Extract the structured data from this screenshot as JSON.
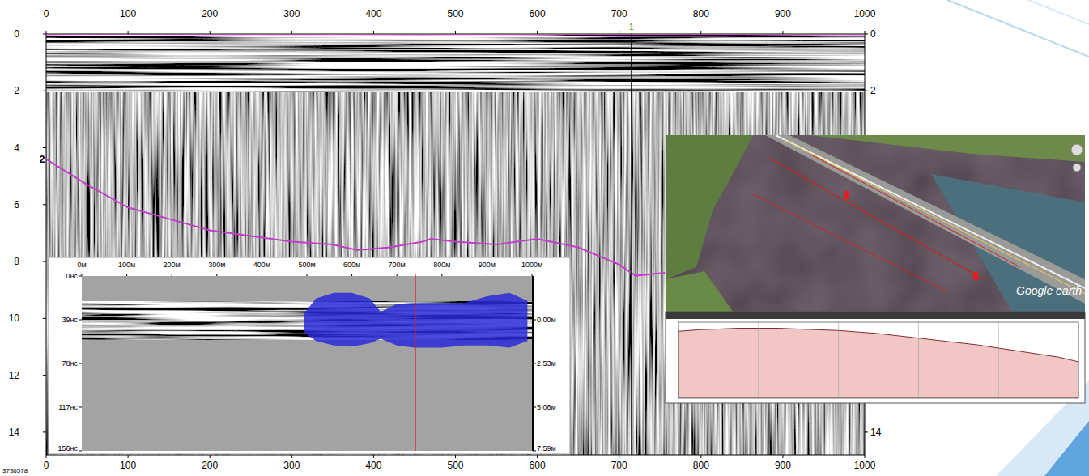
{
  "chart_data": [
    {
      "type": "line",
      "xlim": [
        0,
        1000
      ],
      "ylim": [
        0,
        14.8
      ],
      "xticks": [
        0,
        100,
        200,
        300,
        400,
        500,
        600,
        700,
        800,
        900,
        1000
      ],
      "yticks": [
        0,
        2,
        4,
        6,
        8,
        10,
        12,
        14
      ],
      "grid": false,
      "series": [
        {
          "color": "#c23fc8",
          "x": [
            0,
            50,
            100,
            150,
            200,
            250,
            300,
            350,
            380,
            420,
            460,
            470,
            500,
            550,
            600,
            650,
            700,
            720,
            756
          ],
          "values": [
            4.4,
            5.3,
            6.1,
            6.5,
            6.9,
            7.1,
            7.3,
            7.4,
            7.6,
            7.5,
            7.3,
            7.2,
            7.3,
            7.4,
            7.2,
            7.5,
            8.1,
            8.5,
            8.4
          ]
        },
        {
          "color": "#c23fc8",
          "x": [
            0,
            1000
          ],
          "values": [
            0,
            0
          ]
        }
      ],
      "annotations": [
        {
          "text": "1",
          "x": 715,
          "color": "#2e9e2e"
        },
        {
          "text": "2",
          "y": 4.4
        },
        {
          "text": "3736578"
        }
      ]
    },
    {
      "type": "area",
      "xlim": [
        0,
        1000
      ],
      "ylim": [
        0,
        156
      ],
      "y2lim": [
        -2.53,
        7.59
      ],
      "xticks": [
        {
          "value": 0,
          "label": "0м"
        },
        {
          "value": 100,
          "label": "100м"
        },
        {
          "value": 200,
          "label": "200м"
        },
        {
          "value": 300,
          "label": "300м"
        },
        {
          "value": 400,
          "label": "400м"
        },
        {
          "value": 500,
          "label": "500м"
        },
        {
          "value": 600,
          "label": "600м"
        },
        {
          "value": 700,
          "label": "700м"
        },
        {
          "value": 800,
          "label": "800м"
        },
        {
          "value": 900,
          "label": "900м"
        },
        {
          "value": 1000,
          "label": "1000м"
        }
      ],
      "yticks": [
        {
          "value": 0,
          "label": "0нс"
        },
        {
          "value": 39,
          "label": "39нс"
        },
        {
          "value": 78,
          "label": "78нс"
        },
        {
          "value": 117,
          "label": "117нс"
        },
        {
          "value": 156,
          "label": "156нс"
        }
      ],
      "y2ticks": [
        {
          "value": 0,
          "label": "0.00м"
        },
        {
          "value": 2.53,
          "label": "2.53м"
        },
        {
          "value": 5.06,
          "label": "5.06м"
        },
        {
          "value": 7.59,
          "label": "7.59м"
        }
      ],
      "series": [
        {
          "color": "#2a2ad8",
          "x": [
            493,
            520,
            560,
            600,
            640,
            664,
            700,
            740,
            800,
            850,
            900,
            950,
            990
          ],
          "values": [
            34,
            20,
            15,
            15,
            20,
            32,
            25,
            24,
            24,
            24,
            18,
            15,
            22
          ],
          "lower": [
            50,
            58,
            62,
            63,
            60,
            56,
            62,
            64,
            64,
            62,
            62,
            64,
            58
          ]
        }
      ],
      "annotations": [
        {
          "x": 741,
          "color": "#e02020"
        }
      ]
    },
    {
      "type": "area",
      "tick_labels": false,
      "grid": true,
      "xlim": [
        0,
        20
      ],
      "ylim": [
        0,
        100
      ],
      "xticks": [
        0,
        4,
        8,
        12,
        16,
        20
      ],
      "series": [
        {
          "color": "#f3c6c6",
          "x": [
            0,
            1,
            2,
            3,
            4,
            5,
            6,
            7,
            8,
            9,
            10,
            11,
            12,
            13,
            14,
            15,
            16,
            17,
            18,
            19,
            20
          ],
          "values": [
            88,
            90,
            91,
            92,
            92,
            92,
            91,
            90,
            89,
            87,
            85,
            82,
            79,
            76,
            73,
            70,
            66,
            62,
            58,
            54,
            48
          ]
        }
      ],
      "annotations": [
        {
          "text": "Google earth"
        }
      ]
    }
  ]
}
